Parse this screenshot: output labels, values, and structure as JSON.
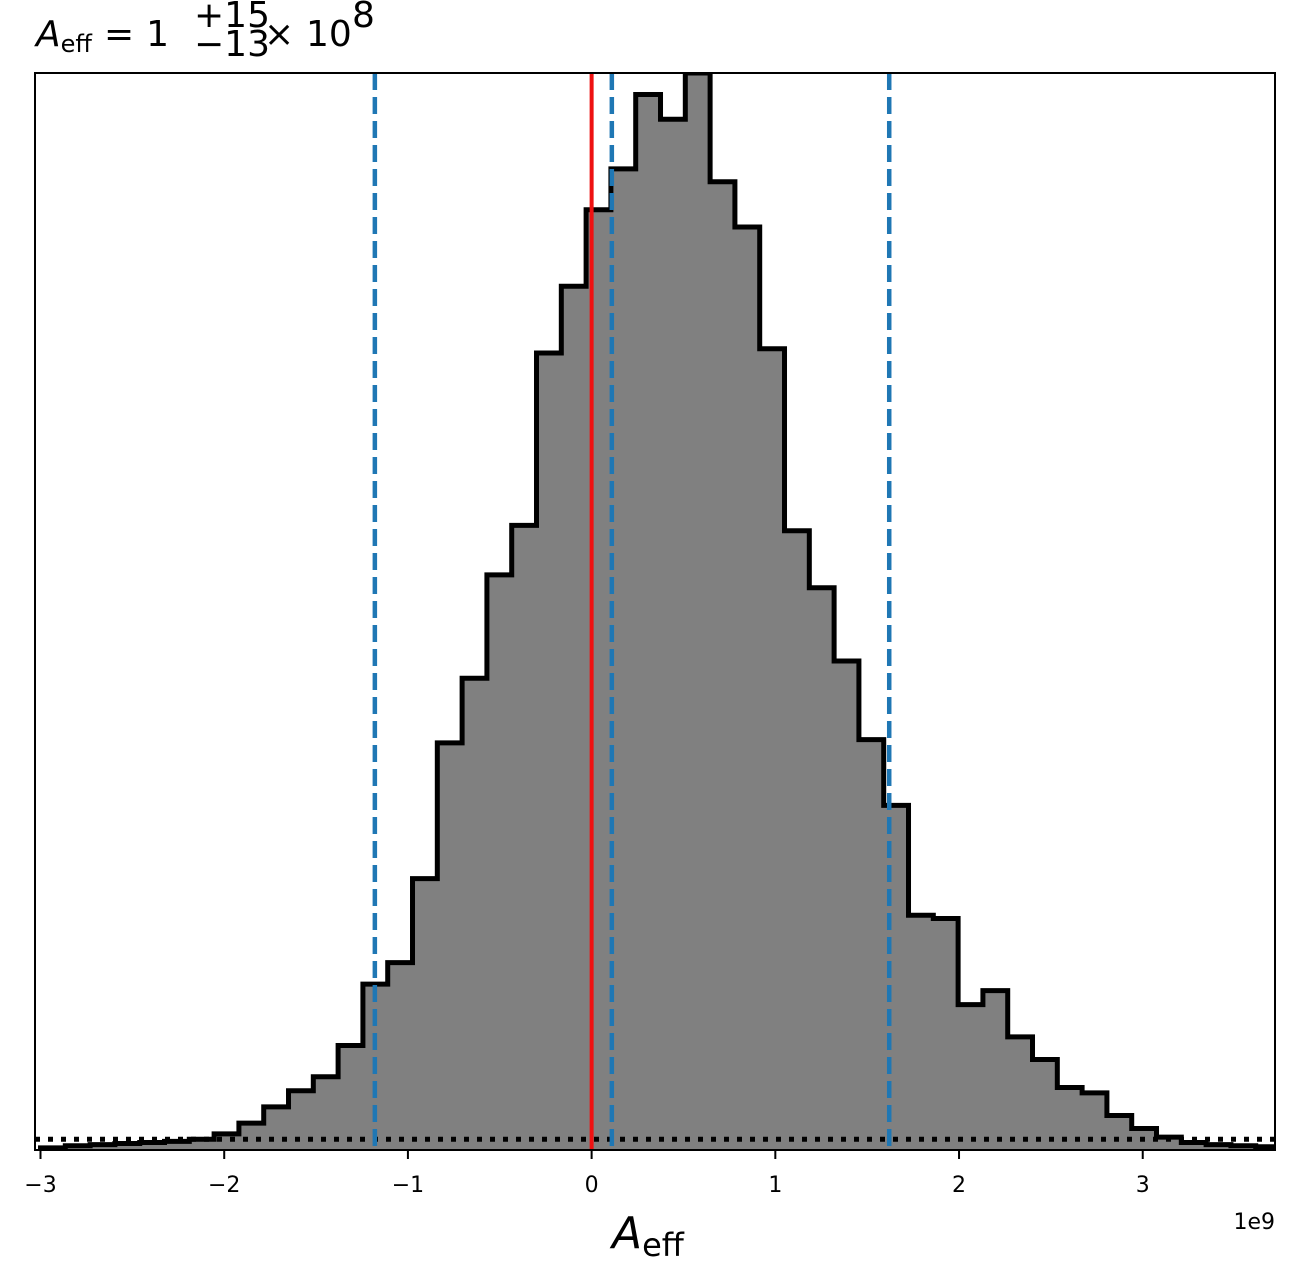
{
  "chart_data": {
    "type": "histogram",
    "title": {
      "symbol": "A",
      "symbol_sub": "eff",
      "equals": "=",
      "mantissa": "1",
      "upper_err": "+15",
      "lower_err": "−13",
      "times": "×",
      "base": "10",
      "exponent": "8"
    },
    "xlabel": {
      "symbol": "A",
      "sub": "eff"
    },
    "ylabel": "",
    "x_offset_label": "1e9",
    "x_scale": 1000000000.0,
    "xlim": [
      -3.03,
      3.72
    ],
    "ylim": [
      0,
      1.0
    ],
    "xticks": [
      {
        "value": -3,
        "label": "−3"
      },
      {
        "value": -2,
        "label": "−2"
      },
      {
        "value": -1,
        "label": "−1"
      },
      {
        "value": 0,
        "label": "0"
      },
      {
        "value": 1,
        "label": "1"
      },
      {
        "value": 2,
        "label": "2"
      },
      {
        "value": 3,
        "label": "3"
      }
    ],
    "yticks_visible": false,
    "grid": false,
    "bins": {
      "start": -3.0,
      "width": 0.135,
      "counts": [
        0.002,
        0.004,
        0.005,
        0.006,
        0.007,
        0.008,
        0.01,
        0.015,
        0.025,
        0.04,
        0.055,
        0.068,
        0.097,
        0.154,
        0.174,
        0.252,
        0.378,
        0.438,
        0.534,
        0.58,
        0.74,
        0.802,
        0.873,
        0.911,
        0.98,
        0.957,
        1.0,
        0.899,
        0.857,
        0.744,
        0.575,
        0.522,
        0.454,
        0.381,
        0.32,
        0.218,
        0.215,
        0.135,
        0.148,
        0.105,
        0.084,
        0.058,
        0.053,
        0.032,
        0.02,
        0.012,
        0.007,
        0.005,
        0.004,
        0.003,
        0.002
      ],
      "fill_color": "#808080",
      "edge_color": "#000000"
    },
    "reference_lines": [
      {
        "kind": "truth",
        "x": 0.0,
        "color": "#ee1111",
        "style": "solid"
      },
      {
        "kind": "quantile",
        "x": -1.18,
        "color": "#1f77b4",
        "style": "dashed"
      },
      {
        "kind": "median",
        "x": 0.11,
        "color": "#1f77b4",
        "style": "dashed"
      },
      {
        "kind": "quantile",
        "x": 1.62,
        "color": "#1f77b4",
        "style": "dashed"
      }
    ],
    "prior_line": {
      "y": 0.01,
      "color": "#000000",
      "style": "dotted"
    }
  }
}
